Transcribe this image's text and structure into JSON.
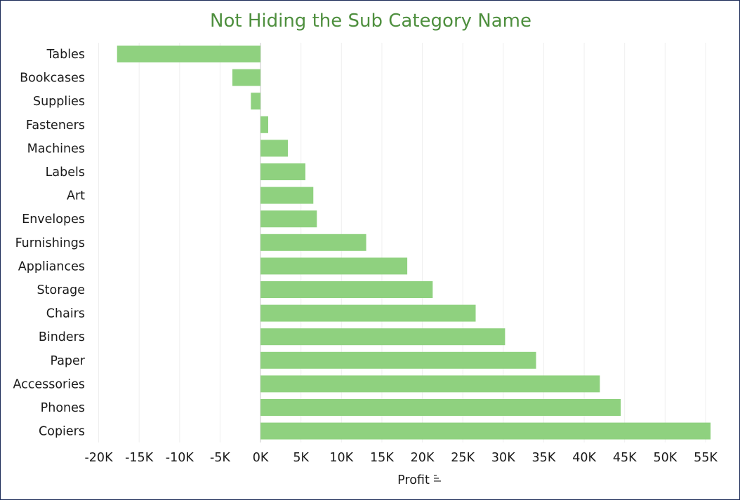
{
  "chart_data": {
    "type": "bar",
    "orientation": "horizontal",
    "title": "Not Hiding the Sub Category Name",
    "xlabel": "Profit",
    "xlabel_icon": "sort-descending-icon",
    "ylabel": "",
    "categories": [
      "Tables",
      "Bookcases",
      "Supplies",
      "Fasteners",
      "Machines",
      "Labels",
      "Art",
      "Envelopes",
      "Furnishings",
      "Appliances",
      "Storage",
      "Chairs",
      "Binders",
      "Paper",
      "Accessories",
      "Phones",
      "Copiers"
    ],
    "values": [
      -17725,
      -3473,
      -1189,
      950,
      3385,
      5546,
      6528,
      6964,
      13059,
      18138,
      21279,
      26590,
      30222,
      34054,
      41937,
      44516,
      55618
    ],
    "xlim": [
      -21000,
      57000
    ],
    "xticks": [
      -20000,
      -15000,
      -10000,
      -5000,
      0,
      5000,
      10000,
      15000,
      20000,
      25000,
      30000,
      35000,
      40000,
      45000,
      50000,
      55000
    ],
    "xtick_labels": [
      "-20K",
      "-15K",
      "-10K",
      "-5K",
      "0K",
      "5K",
      "10K",
      "15K",
      "20K",
      "25K",
      "30K",
      "35K",
      "40K",
      "45K",
      "50K",
      "55K"
    ],
    "grid": "vertical",
    "legend": "none",
    "colors": {
      "bar": "#8fd17f",
      "title": "#4e8f3e",
      "border": "#1b2a57"
    }
  }
}
